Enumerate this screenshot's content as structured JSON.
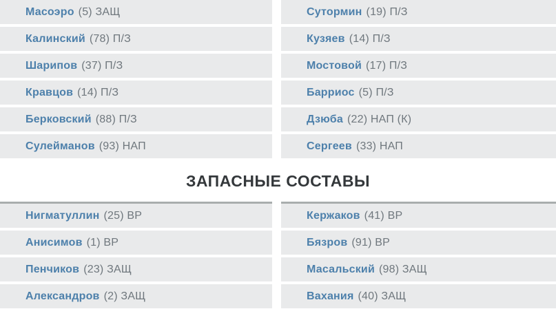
{
  "header": {
    "title": "ЗАПАСНЫЕ СОСТАВЫ"
  },
  "colors": {
    "player_name_link": "#4d80ab",
    "player_details_text": "#6f777d",
    "row_background": "#e9eaeb",
    "header_text": "#34383b",
    "reserves_divider": "#a9adad",
    "page_background": "#ffffff"
  },
  "starting_lineups": {
    "left": [
      {
        "name": "Масоэро",
        "number": 5,
        "position": "ЗАЩ",
        "details": "(5) ЗАЩ"
      },
      {
        "name": "Калинский",
        "number": 78,
        "position": "П/З",
        "details": "(78) П/З"
      },
      {
        "name": "Шарипов",
        "number": 37,
        "position": "П/З",
        "details": "(37) П/З"
      },
      {
        "name": "Кравцов",
        "number": 14,
        "position": "П/З",
        "details": "(14) П/З"
      },
      {
        "name": "Берковский",
        "number": 88,
        "position": "П/З",
        "details": "(88) П/З"
      },
      {
        "name": "Сулейманов",
        "number": 93,
        "position": "НАП",
        "details": "(93) НАП"
      }
    ],
    "right": [
      {
        "name": "Сутормин",
        "number": 19,
        "position": "П/З",
        "details": "(19) П/З"
      },
      {
        "name": "Кузяев",
        "number": 14,
        "position": "П/З",
        "details": "(14) П/З"
      },
      {
        "name": "Мостовой",
        "number": 17,
        "position": "П/З",
        "details": "(17) П/З"
      },
      {
        "name": "Барриос",
        "number": 5,
        "position": "П/З",
        "details": "(5) П/З"
      },
      {
        "name": "Дзюба",
        "number": 22,
        "position": "НАП",
        "captain": true,
        "details": "(22) НАП (К)"
      },
      {
        "name": "Сергеев",
        "number": 33,
        "position": "НАП",
        "details": "(33) НАП"
      }
    ]
  },
  "reserve_lineups": {
    "left": [
      {
        "name": "Нигматуллин",
        "number": 25,
        "position": "ВР",
        "details": "(25) ВР"
      },
      {
        "name": "Анисимов",
        "number": 1,
        "position": "ВР",
        "details": "(1) ВР"
      },
      {
        "name": "Пенчиков",
        "number": 23,
        "position": "ЗАЩ",
        "details": "(23) ЗАЩ"
      },
      {
        "name": "Александров",
        "number": 2,
        "position": "ЗАЩ",
        "details": "(2) ЗАЩ"
      }
    ],
    "right": [
      {
        "name": "Кержаков",
        "number": 41,
        "position": "ВР",
        "details": "(41) ВР"
      },
      {
        "name": "Бязров",
        "number": 91,
        "position": "ВР",
        "details": "(91) ВР"
      },
      {
        "name": "Масальский",
        "number": 98,
        "position": "ЗАЩ",
        "details": "(98) ЗАЩ"
      },
      {
        "name": "Вахания",
        "number": 40,
        "position": "ЗАЩ",
        "details": "(40) ЗАЩ"
      }
    ]
  }
}
